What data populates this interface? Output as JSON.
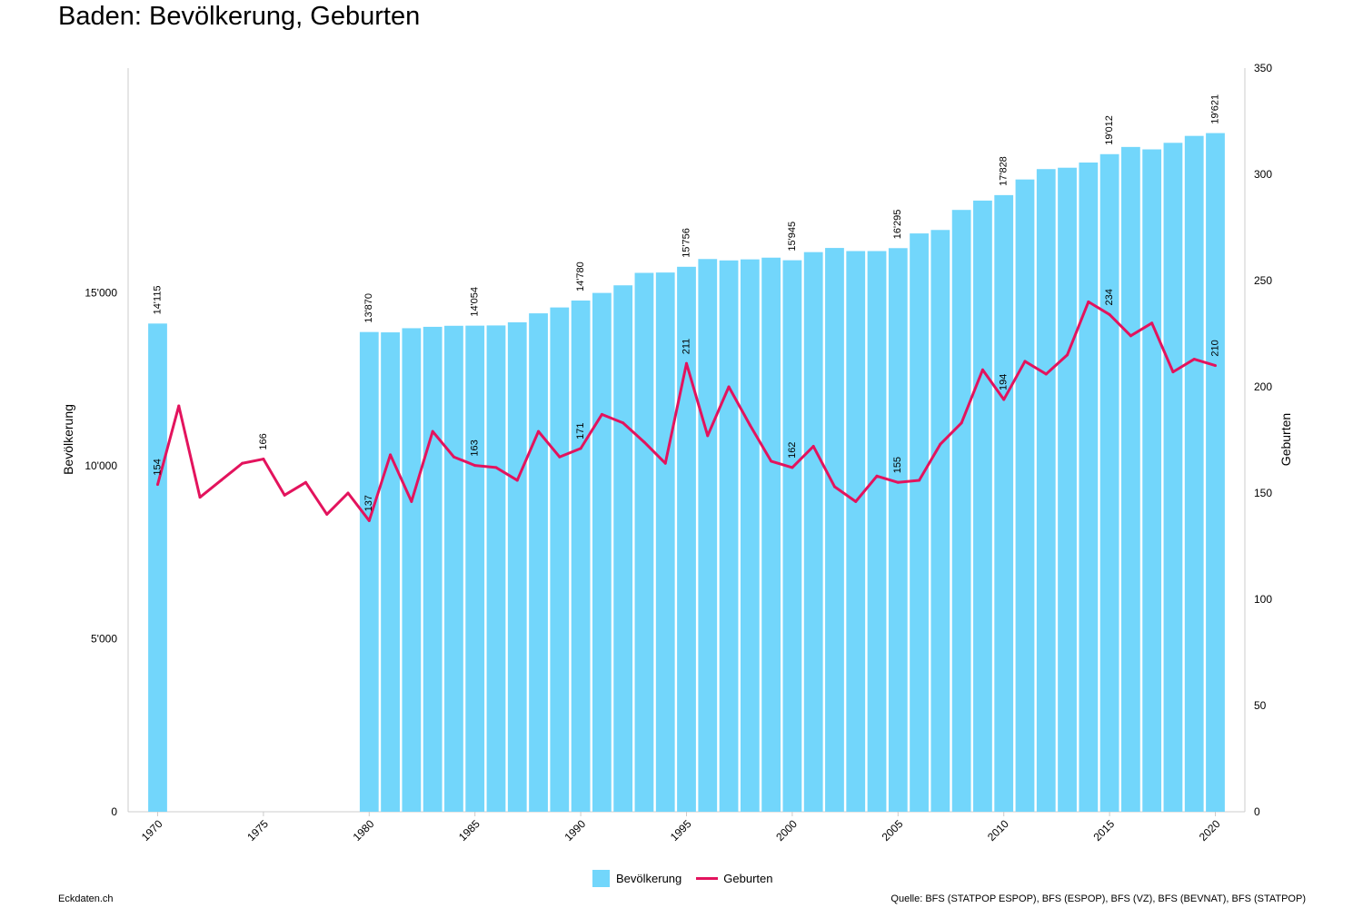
{
  "title": "Baden: Bevölkerung, Geburten",
  "footer": {
    "left": "Eckdaten.ch",
    "right": "Quelle: BFS (STATPOP ESPOP), BFS (ESPOP), BFS (VZ), BFS (BEVNAT), BFS (STATPOP)"
  },
  "colors": {
    "population": "#72d6fb",
    "births": "#e3135d",
    "axis": "#cccccc"
  },
  "chart_data": {
    "type": "bar+line",
    "xlabel": "",
    "y_left_label": "Bevölkerung",
    "y_right_label": "Geburten",
    "y_left_range": [
      0,
      21500
    ],
    "y_right_range": [
      0,
      350
    ],
    "y_left_ticks": [
      "0",
      "5'000",
      "10'000",
      "15'000"
    ],
    "y_right_ticks": [
      "0",
      "50",
      "100",
      "150",
      "200",
      "250",
      "300",
      "350"
    ],
    "x_ticks": [
      "1970",
      "1975",
      "1980",
      "1985",
      "1990",
      "1995",
      "2000",
      "2005",
      "2010",
      "2015",
      "2020"
    ],
    "x_range": [
      1969,
      2021
    ],
    "legend": {
      "position": "bottom",
      "items": [
        "Bevölkerung",
        "Geburten"
      ]
    },
    "series": [
      {
        "name": "Bevölkerung",
        "type": "bar",
        "x": [
          1970,
          1980,
          1981,
          1982,
          1983,
          1984,
          1985,
          1986,
          1987,
          1988,
          1989,
          1990,
          1991,
          1992,
          1993,
          1994,
          1995,
          1996,
          1997,
          1998,
          1999,
          2000,
          2001,
          2002,
          2003,
          2004,
          2005,
          2006,
          2007,
          2008,
          2009,
          2010,
          2011,
          2012,
          2013,
          2014,
          2015,
          2016,
          2017,
          2018,
          2019,
          2020
        ],
        "values": [
          14115,
          13870,
          13860,
          13980,
          14020,
          14050,
          14054,
          14060,
          14150,
          14410,
          14580,
          14780,
          15000,
          15220,
          15580,
          15590,
          15756,
          15980,
          15940,
          15970,
          16020,
          15945,
          16180,
          16300,
          16210,
          16210,
          16295,
          16720,
          16820,
          17400,
          17670,
          17828,
          18280,
          18580,
          18620,
          18770,
          19012,
          19220,
          19150,
          19340,
          19540,
          19621
        ],
        "labels": {
          "1970": "14'115",
          "1980": "13'870",
          "1985": "14'054",
          "1990": "14'780",
          "1995": "15'756",
          "2000": "15'945",
          "2005": "16'295",
          "2010": "17'828",
          "2015": "19'012",
          "2020": "19'621"
        }
      },
      {
        "name": "Geburten",
        "type": "line",
        "x": [
          1970,
          1971,
          1972,
          1973,
          1974,
          1975,
          1976,
          1977,
          1978,
          1979,
          1980,
          1981,
          1982,
          1983,
          1984,
          1985,
          1986,
          1987,
          1988,
          1989,
          1990,
          1991,
          1992,
          1993,
          1994,
          1995,
          1996,
          1997,
          1998,
          1999,
          2000,
          2001,
          2002,
          2003,
          2004,
          2005,
          2006,
          2007,
          2008,
          2009,
          2010,
          2011,
          2012,
          2013,
          2014,
          2015,
          2016,
          2017,
          2018,
          2019,
          2020
        ],
        "values": [
          154,
          191,
          148,
          156,
          164,
          166,
          149,
          155,
          140,
          150,
          137,
          168,
          146,
          179,
          167,
          163,
          162,
          156,
          179,
          167,
          171,
          187,
          183,
          174,
          164,
          211,
          177,
          200,
          182,
          165,
          162,
          172,
          153,
          146,
          158,
          155,
          156,
          173,
          183,
          208,
          194,
          212,
          206,
          215,
          240,
          234,
          224,
          230,
          207,
          213,
          210
        ],
        "labels": {
          "1970": "154",
          "1975": "166",
          "1980": "137",
          "1985": "163",
          "1990": "171",
          "1995": "211",
          "2000": "162",
          "2005": "155",
          "2010": "194",
          "2015": "234",
          "2020": "210"
        }
      }
    ]
  }
}
